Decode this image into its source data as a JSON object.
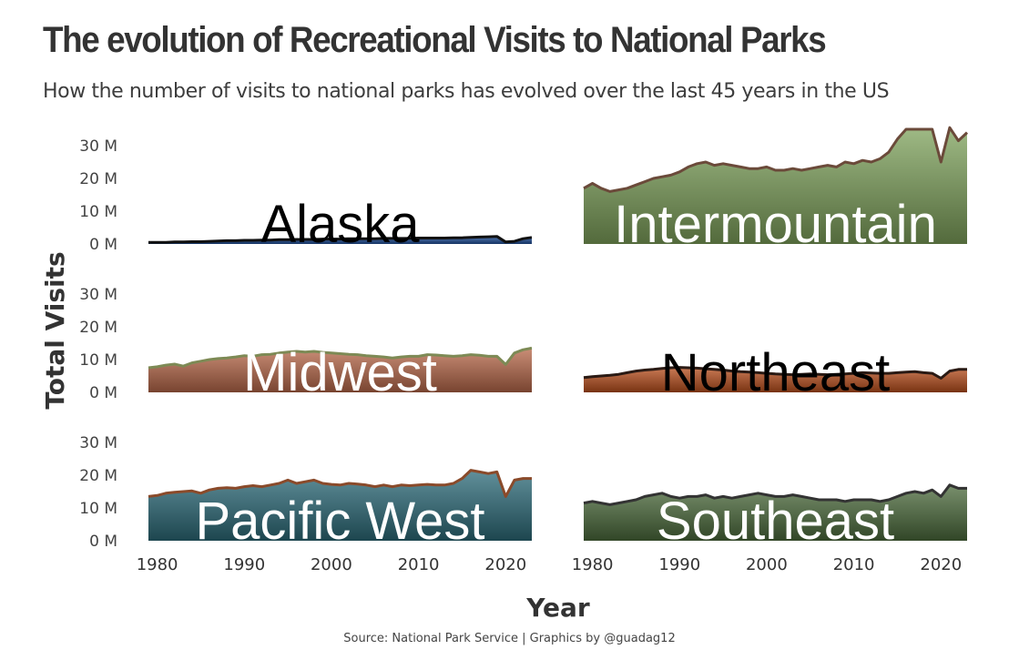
{
  "chart_data": {
    "type": "area",
    "title": "The evolution of Recreational Visits to National Parks",
    "subtitle": "How the number of visits to national parks has evolved over the last 45 years in the US",
    "xlabel": "Year",
    "ylabel": "Total Visits",
    "source": "Source: National Park Service |  Graphics by @guadag12",
    "xlim": [
      1979,
      2023
    ],
    "ylim": [
      0,
      35
    ],
    "x_ticks": [
      1980,
      1990,
      2000,
      2010,
      2020
    ],
    "x_tick_labels": [
      "1980",
      "1990",
      "2000",
      "2010",
      "2020"
    ],
    "y_ticks": [
      0,
      10,
      20,
      30
    ],
    "y_tick_labels": [
      "0 M",
      "10 M",
      "20 M",
      "30 M"
    ],
    "grid": false,
    "facet_layout": "3 rows x 2 columns",
    "x": [
      1979,
      1980,
      1981,
      1982,
      1983,
      1984,
      1985,
      1986,
      1987,
      1988,
      1989,
      1990,
      1991,
      1992,
      1993,
      1994,
      1995,
      1996,
      1997,
      1998,
      1999,
      2000,
      2001,
      2002,
      2003,
      2004,
      2005,
      2006,
      2007,
      2008,
      2009,
      2010,
      2011,
      2012,
      2013,
      2014,
      2015,
      2016,
      2017,
      2018,
      2019,
      2020,
      2021,
      2022,
      2023
    ],
    "series": [
      {
        "name": "Alaska",
        "fill": "#1f4f99",
        "line": "#111111",
        "label_color": "#000000",
        "values": [
          0.5,
          0.5,
          0.5,
          0.6,
          0.6,
          0.7,
          0.7,
          0.8,
          0.9,
          1.0,
          1.0,
          1.1,
          1.1,
          1.2,
          1.2,
          1.3,
          1.3,
          1.4,
          1.4,
          1.4,
          1.5,
          1.5,
          1.5,
          1.6,
          1.6,
          1.6,
          1.6,
          1.7,
          1.7,
          1.7,
          1.7,
          1.8,
          1.8,
          1.8,
          1.8,
          1.9,
          1.9,
          2.0,
          2.1,
          2.2,
          2.3,
          0.6,
          0.8,
          1.6,
          2.0
        ]
      },
      {
        "name": "Intermountain",
        "fill": "#7fa35c",
        "line": "#6b4a3a",
        "label_color": "#ffffff",
        "values": [
          17.0,
          18.5,
          17.0,
          16.0,
          16.5,
          17.0,
          18.0,
          19.0,
          20.0,
          20.5,
          21.0,
          22.0,
          23.5,
          24.5,
          25.0,
          24.0,
          24.5,
          24.0,
          23.5,
          23.0,
          23.0,
          23.5,
          22.5,
          22.5,
          23.0,
          22.5,
          23.0,
          23.5,
          24.0,
          23.5,
          25.0,
          24.5,
          25.5,
          25.0,
          26.0,
          28.0,
          32.0,
          35.0,
          35.0,
          35.0,
          35.0,
          25.0,
          35.5,
          31.5,
          34.0
        ]
      },
      {
        "name": "Midwest",
        "fill": "#b8684a",
        "line": "#7d8a55",
        "label_color": "#ffffff",
        "values": [
          7.5,
          7.8,
          8.3,
          8.6,
          8.0,
          9.0,
          9.5,
          10.0,
          10.3,
          10.5,
          10.8,
          11.2,
          11.0,
          11.5,
          11.6,
          12.0,
          12.3,
          12.5,
          12.3,
          12.5,
          12.2,
          12.0,
          11.8,
          11.6,
          11.5,
          11.2,
          11.0,
          10.8,
          10.5,
          10.8,
          11.0,
          11.0,
          11.5,
          11.4,
          11.2,
          11.0,
          11.2,
          11.5,
          11.3,
          11.0,
          11.0,
          8.5,
          12.0,
          13.0,
          13.5
        ]
      },
      {
        "name": "Northeast",
        "fill": "#b84e1c",
        "line": "#2a1a14",
        "label_color": "#000000",
        "values": [
          4.5,
          4.8,
          5.0,
          5.2,
          5.5,
          6.0,
          6.5,
          6.8,
          7.0,
          7.3,
          7.5,
          7.6,
          7.5,
          7.4,
          7.2,
          7.0,
          6.8,
          6.5,
          6.3,
          6.2,
          6.0,
          5.8,
          5.6,
          5.5,
          5.4,
          5.5,
          5.6,
          5.5,
          5.4,
          5.5,
          5.6,
          5.8,
          6.0,
          5.9,
          5.8,
          5.8,
          6.0,
          6.2,
          6.3,
          6.0,
          5.8,
          4.3,
          6.5,
          7.0,
          7.0
        ]
      },
      {
        "name": "Pacific West",
        "fill": "#2c6b7a",
        "line": "#8a4a2a",
        "label_color": "#ffffff",
        "values": [
          13.5,
          13.8,
          14.5,
          14.8,
          15.0,
          15.2,
          14.5,
          15.5,
          16.0,
          16.2,
          16.0,
          16.5,
          16.8,
          16.5,
          17.0,
          17.5,
          18.5,
          17.5,
          18.0,
          18.5,
          17.5,
          17.2,
          17.0,
          17.5,
          17.3,
          17.0,
          16.5,
          17.0,
          16.5,
          17.0,
          16.8,
          17.0,
          17.2,
          17.0,
          17.0,
          17.5,
          19.0,
          21.5,
          21.0,
          20.5,
          21.0,
          13.5,
          18.5,
          19.0,
          19.0
        ]
      },
      {
        "name": "Southeast",
        "fill": "#4c6b3c",
        "line": "#333333",
        "label_color": "#ffffff",
        "values": [
          11.5,
          12.0,
          11.5,
          11.0,
          11.5,
          12.0,
          12.5,
          13.5,
          14.0,
          14.5,
          13.5,
          13.0,
          13.5,
          13.5,
          14.0,
          13.0,
          13.5,
          13.0,
          13.5,
          14.0,
          14.5,
          14.0,
          13.5,
          13.5,
          14.0,
          13.5,
          13.0,
          12.5,
          12.5,
          12.5,
          12.0,
          12.5,
          12.5,
          12.5,
          12.0,
          12.5,
          13.5,
          14.5,
          15.0,
          14.5,
          15.5,
          13.5,
          17.0,
          16.0,
          16.0
        ]
      }
    ]
  }
}
